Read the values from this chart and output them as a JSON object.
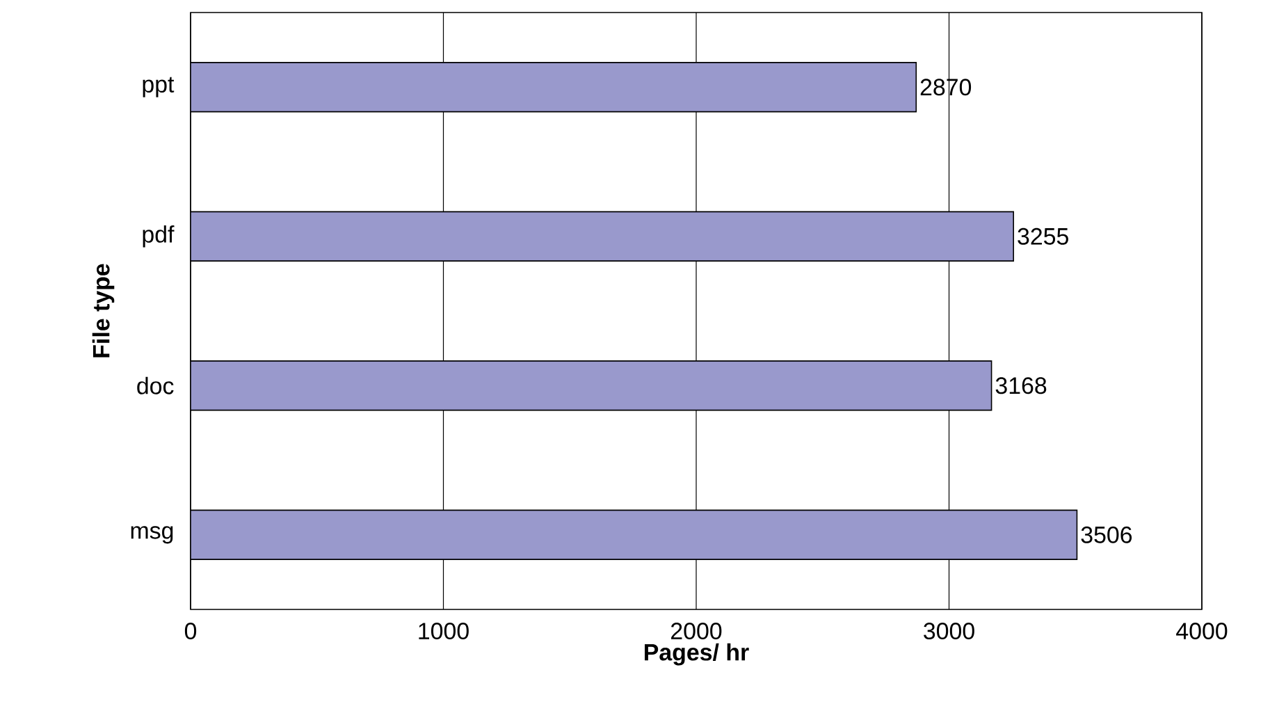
{
  "chart_data": {
    "type": "bar",
    "orientation": "horizontal",
    "categories": [
      "ppt",
      "pdf",
      "doc",
      "msg"
    ],
    "values": [
      2870,
      3255,
      3168,
      3506
    ],
    "color": "#9999cc",
    "xlim": [
      0,
      4000
    ],
    "xticks": [
      0,
      1000,
      2000,
      3000,
      4000
    ],
    "xlabel": "Pages/ hr",
    "ylabel": "File type",
    "grid": "x",
    "data_labels": true
  }
}
